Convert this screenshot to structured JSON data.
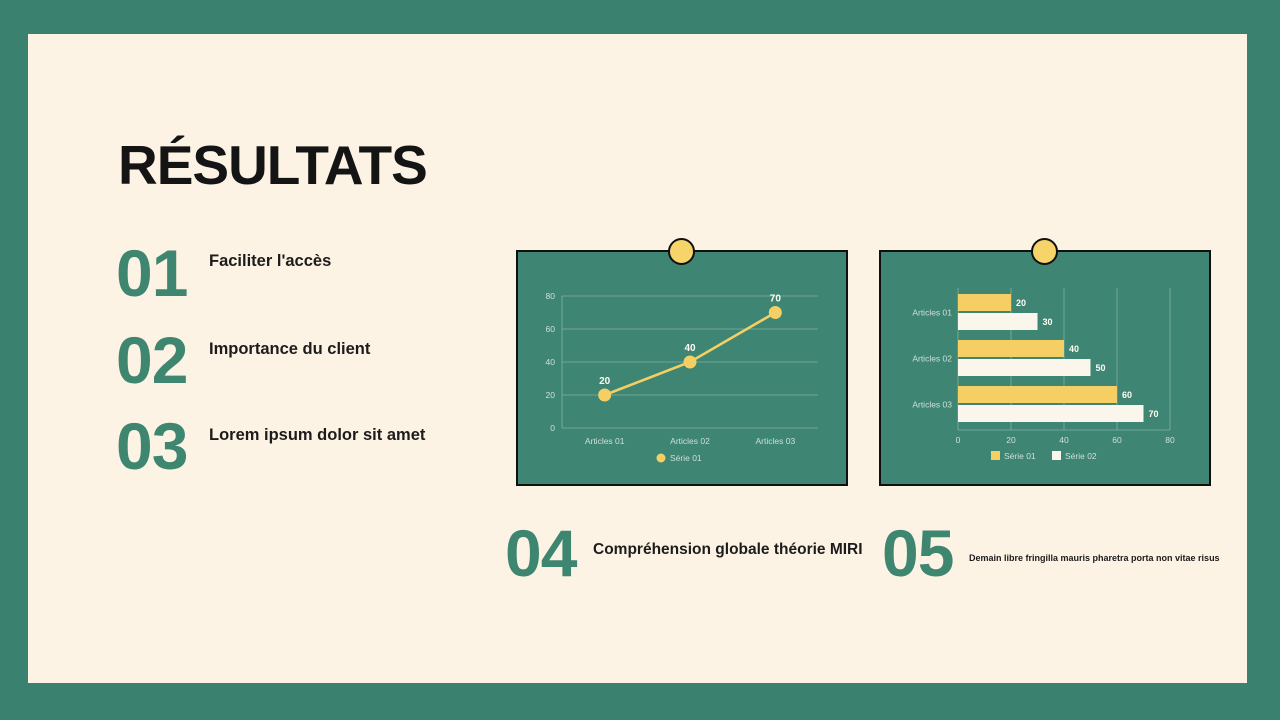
{
  "slide": {
    "title": "RÉSULTATS",
    "items": [
      {
        "number": "01",
        "label": "Faciliter l'accès"
      },
      {
        "number": "02",
        "label": "Importance du client"
      },
      {
        "number": "03",
        "label": "Lorem ipsum dolor sit amet"
      },
      {
        "number": "04",
        "label": "Compréhension globale théorie MIRI"
      },
      {
        "number": "05",
        "label": "Demain libre fringilla mauris pharetra porta non vitae risus"
      }
    ]
  },
  "colors": {
    "frame_green": "#3A8170",
    "card_green": "#3E8573",
    "cream": "#FDF3E4",
    "accent_green": "#3F8671",
    "series1_yellow": "#F5CF63",
    "series2_white": "#FBF6EB",
    "pin_yellow": "#F6D469",
    "ink": "#141414"
  },
  "chart_data": [
    {
      "type": "line",
      "title": "",
      "xlabel": "",
      "ylabel": "",
      "categories": [
        "Articles 01",
        "Articles 02",
        "Articles 03"
      ],
      "series": [
        {
          "name": "Série 01",
          "values": [
            20,
            40,
            70
          ]
        }
      ],
      "ylim": [
        0,
        80
      ],
      "yticks": [
        0,
        20,
        40,
        60,
        80
      ],
      "grid": true,
      "legend_position": "bottom"
    },
    {
      "type": "bar",
      "orientation": "horizontal",
      "title": "",
      "xlabel": "",
      "ylabel": "",
      "categories": [
        "Articles 01",
        "Articles 02",
        "Articles 03"
      ],
      "series": [
        {
          "name": "Série 01",
          "values": [
            20,
            40,
            60
          ]
        },
        {
          "name": "Série 02",
          "values": [
            30,
            50,
            70
          ]
        }
      ],
      "xlim": [
        0,
        80
      ],
      "xticks": [
        0,
        20,
        40,
        60,
        80
      ],
      "grid": true,
      "legend_position": "bottom"
    }
  ]
}
